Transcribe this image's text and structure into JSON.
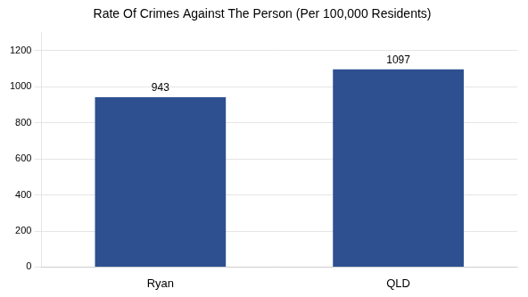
{
  "chart_data": {
    "type": "bar",
    "title": "Rate Of Crimes Against The Person (Per 100,000 Residents)",
    "categories": [
      "Ryan",
      "QLD"
    ],
    "values": [
      943,
      1097
    ],
    "color": "#2e5090",
    "ylim": [
      0,
      1300
    ],
    "yticks": [
      0,
      200,
      400,
      600,
      800,
      1000,
      1200
    ],
    "grid": true,
    "data_labels": true
  }
}
